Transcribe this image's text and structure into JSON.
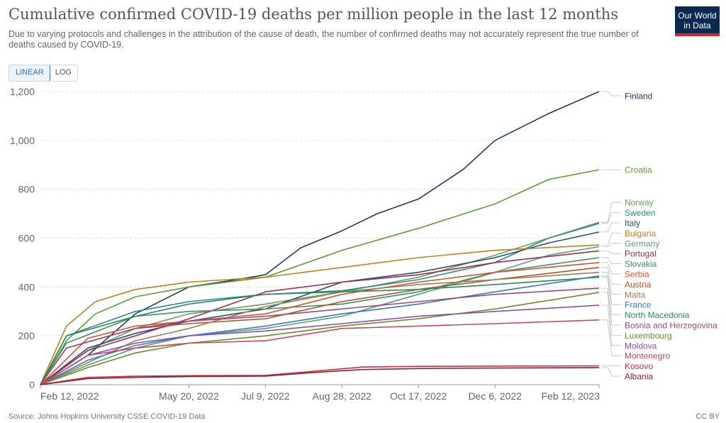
{
  "header": {
    "title": "Cumulative confirmed COVID-19 deaths per million people in the last 12 months",
    "subtitle": "Due to varying protocols and challenges in the attribution of the cause of death, the number of confirmed deaths may not accurately represent the true number of deaths caused by COVID-19.",
    "logo_line1": "Our World",
    "logo_line2": "in Data"
  },
  "controls": {
    "linear_label": "LINEAR",
    "log_label": "LOG",
    "selected": "LINEAR"
  },
  "footer": {
    "source": "Source: Johns Hopkins University CSSE COVID-19 Data",
    "license": "CC BY"
  },
  "colors": {
    "accent": "#2f6fce",
    "brand": "#0b2a52",
    "brand_bar": "#cf2b2b",
    "grid": "#dddddd"
  },
  "chart_data": {
    "type": "line",
    "title": "Cumulative confirmed COVID-19 deaths per million people in the last 12 months",
    "xlabel": "",
    "ylabel": "",
    "x_range": [
      "2022-02-12",
      "2023-02-12"
    ],
    "ylim": [
      0,
      1200
    ],
    "y_ticks": [
      0,
      200,
      400,
      600,
      800,
      1000,
      1200
    ],
    "x_ticks": [
      "2022-02-12",
      "2022-05-20",
      "2022-07-09",
      "2022-08-28",
      "2022-10-17",
      "2022-12-06",
      "2023-02-12"
    ],
    "x_tick_labels": [
      "Feb 12, 2022",
      "May 20, 2022",
      "Jul 9, 2022",
      "Aug 28, 2022",
      "Oct 17, 2022",
      "Dec 6, 2022",
      "Feb 12, 2023"
    ],
    "grid": true,
    "legend_placement": "right, labels at line ends",
    "series": [
      {
        "name": "Finland",
        "color": "#1f3a63",
        "x": [
          "2022-02-12",
          "2022-03-15",
          "2022-04-15",
          "2022-05-20",
          "2022-06-20",
          "2022-07-09",
          "2022-08-01",
          "2022-08-28",
          "2022-09-20",
          "2022-10-17",
          "2022-11-15",
          "2022-12-06",
          "2023-01-10",
          "2023-02-12"
        ],
        "values": [
          0,
          120,
          290,
          400,
          430,
          450,
          560,
          630,
          700,
          760,
          880,
          1000,
          1110,
          1200
        ]
      },
      {
        "name": "Croatia",
        "color": "#5a9e2b",
        "x": [
          "2022-02-12",
          "2022-03-01",
          "2022-03-20",
          "2022-04-15",
          "2022-05-20",
          "2022-07-09",
          "2022-08-28",
          "2022-10-17",
          "2022-12-06",
          "2023-01-10",
          "2023-02-12"
        ],
        "values": [
          0,
          180,
          290,
          360,
          400,
          440,
          550,
          640,
          740,
          840,
          880
        ]
      },
      {
        "name": "Norway",
        "color": "#6a9e5a",
        "x": [
          "2022-02-12",
          "2022-03-15",
          "2022-04-15",
          "2022-05-20",
          "2022-07-09",
          "2022-08-28",
          "2022-10-17",
          "2022-12-06",
          "2023-01-10",
          "2023-02-12"
        ],
        "values": [
          0,
          140,
          230,
          290,
          330,
          380,
          440,
          530,
          600,
          665
        ]
      },
      {
        "name": "Sweden",
        "color": "#2d8a86",
        "x": [
          "2022-02-12",
          "2022-03-01",
          "2022-04-15",
          "2022-05-20",
          "2022-07-09",
          "2022-08-28",
          "2022-10-17",
          "2022-12-06",
          "2023-01-10",
          "2023-02-12"
        ],
        "values": [
          0,
          200,
          300,
          340,
          370,
          385,
          430,
          500,
          600,
          660
        ]
      },
      {
        "name": "Italy",
        "color": "#2c4a7a",
        "x": [
          "2022-02-12",
          "2022-03-15",
          "2022-04-15",
          "2022-05-20",
          "2022-07-09",
          "2022-08-28",
          "2022-10-17",
          "2022-12-06",
          "2023-01-10",
          "2023-02-12"
        ],
        "values": [
          0,
          150,
          210,
          260,
          310,
          420,
          460,
          520,
          580,
          625
        ]
      },
      {
        "name": "Bulgaria",
        "color": "#c67c1f",
        "x": [
          "2022-02-12",
          "2022-03-01",
          "2022-03-20",
          "2022-04-15",
          "2022-05-20",
          "2022-07-09",
          "2022-08-28",
          "2022-10-17",
          "2022-12-06",
          "2023-02-12"
        ],
        "values": [
          0,
          240,
          340,
          390,
          420,
          440,
          480,
          520,
          550,
          572
        ]
      },
      {
        "name": "Germany",
        "color": "#5c9e72",
        "x": [
          "2022-02-12",
          "2022-03-15",
          "2022-04-15",
          "2022-05-20",
          "2022-07-09",
          "2022-08-28",
          "2022-10-17",
          "2022-12-06",
          "2023-01-10",
          "2023-02-12"
        ],
        "values": [
          0,
          80,
          150,
          200,
          230,
          280,
          370,
          460,
          530,
          565
        ]
      },
      {
        "name": "Portugal",
        "color": "#a0304a",
        "x": [
          "2022-02-12",
          "2022-03-15",
          "2022-04-15",
          "2022-05-20",
          "2022-07-09",
          "2022-08-28",
          "2022-10-17",
          "2022-12-06",
          "2023-02-12"
        ],
        "values": [
          0,
          140,
          200,
          270,
          380,
          420,
          450,
          500,
          548
        ]
      },
      {
        "name": "Slovakia",
        "color": "#3f8e6a",
        "x": [
          "2022-02-12",
          "2022-03-01",
          "2022-04-15",
          "2022-05-20",
          "2022-07-09",
          "2022-08-28",
          "2022-10-17",
          "2022-12-06",
          "2023-02-12"
        ],
        "values": [
          0,
          170,
          280,
          300,
          310,
          330,
          380,
          460,
          520
        ]
      },
      {
        "name": "Serbia",
        "color": "#d3562a",
        "x": [
          "2022-02-12",
          "2022-03-15",
          "2022-04-15",
          "2022-05-20",
          "2022-07-09",
          "2022-08-28",
          "2022-10-17",
          "2022-12-06",
          "2023-02-12"
        ],
        "values": [
          0,
          190,
          240,
          260,
          290,
          370,
          420,
          460,
          500
        ]
      },
      {
        "name": "Austria",
        "color": "#b5532a",
        "x": [
          "2022-02-12",
          "2022-03-01",
          "2022-04-15",
          "2022-05-20",
          "2022-07-09",
          "2022-08-28",
          "2022-10-17",
          "2022-12-06",
          "2023-02-12"
        ],
        "values": [
          0,
          150,
          230,
          250,
          270,
          340,
          390,
          430,
          480
        ]
      },
      {
        "name": "Malta",
        "color": "#9c7f56",
        "x": [
          "2022-02-12",
          "2022-03-15",
          "2022-04-15",
          "2022-05-20",
          "2022-07-09",
          "2022-08-28",
          "2022-10-17",
          "2022-12-06",
          "2023-02-12"
        ],
        "values": [
          0,
          90,
          180,
          230,
          320,
          380,
          410,
          430,
          460
        ]
      },
      {
        "name": "North Macedonia",
        "color": "#2a8a5c",
        "x": [
          "2022-02-12",
          "2022-03-01",
          "2022-04-15",
          "2022-05-20",
          "2022-07-09",
          "2022-08-28",
          "2022-10-17",
          "2022-12-06",
          "2023-02-12"
        ],
        "values": [
          0,
          200,
          280,
          330,
          370,
          380,
          390,
          410,
          440
        ]
      },
      {
        "name": "France",
        "color": "#3a78c9",
        "x": [
          "2022-02-12",
          "2022-03-15",
          "2022-04-15",
          "2022-05-20",
          "2022-07-09",
          "2022-08-28",
          "2022-10-17",
          "2022-12-06",
          "2023-02-12"
        ],
        "values": [
          0,
          100,
          160,
          200,
          240,
          290,
          330,
          380,
          445
        ]
      },
      {
        "name": "Bosnia and Herzegovina",
        "color": "#9a4a7a",
        "x": [
          "2022-02-12",
          "2022-03-01",
          "2022-04-15",
          "2022-05-20",
          "2022-07-09",
          "2022-08-28",
          "2022-10-17",
          "2022-12-06",
          "2023-02-12"
        ],
        "values": [
          0,
          150,
          230,
          260,
          280,
          310,
          340,
          370,
          395
        ]
      },
      {
        "name": "Luxembourg",
        "color": "#6b8a2a",
        "x": [
          "2022-02-12",
          "2022-03-15",
          "2022-04-15",
          "2022-05-20",
          "2022-07-09",
          "2022-08-28",
          "2022-10-17",
          "2022-12-06",
          "2023-02-12"
        ],
        "values": [
          0,
          70,
          130,
          170,
          200,
          240,
          270,
          310,
          378
        ]
      },
      {
        "name": "Moldova",
        "color": "#8a4fb0",
        "x": [
          "2022-02-12",
          "2022-03-15",
          "2022-04-15",
          "2022-05-20",
          "2022-07-09",
          "2022-08-28",
          "2022-10-17",
          "2022-12-06",
          "2023-02-12"
        ],
        "values": [
          0,
          120,
          170,
          200,
          220,
          250,
          280,
          300,
          325
        ]
      },
      {
        "name": "Montenegro",
        "color": "#c9485a",
        "x": [
          "2022-02-12",
          "2022-03-15",
          "2022-04-15",
          "2022-05-20",
          "2022-07-09",
          "2022-08-28",
          "2022-10-17",
          "2022-12-06",
          "2023-02-12"
        ],
        "values": [
          0,
          120,
          150,
          170,
          180,
          230,
          240,
          250,
          265
        ]
      },
      {
        "name": "Kosovo",
        "color": "#c1313f",
        "x": [
          "2022-02-12",
          "2022-03-15",
          "2022-04-15",
          "2022-05-20",
          "2022-07-09",
          "2022-08-10",
          "2022-09-10",
          "2022-10-17",
          "2022-12-06",
          "2023-02-12"
        ],
        "values": [
          0,
          30,
          35,
          37,
          38,
          55,
          72,
          75,
          76,
          77
        ]
      },
      {
        "name": "Albania",
        "color": "#8c2432",
        "x": [
          "2022-02-12",
          "2022-03-15",
          "2022-04-15",
          "2022-05-20",
          "2022-07-09",
          "2022-08-10",
          "2022-09-10",
          "2022-10-17",
          "2022-12-06",
          "2023-02-12"
        ],
        "values": [
          0,
          25,
          30,
          33,
          35,
          50,
          62,
          66,
          68,
          70
        ]
      }
    ]
  }
}
